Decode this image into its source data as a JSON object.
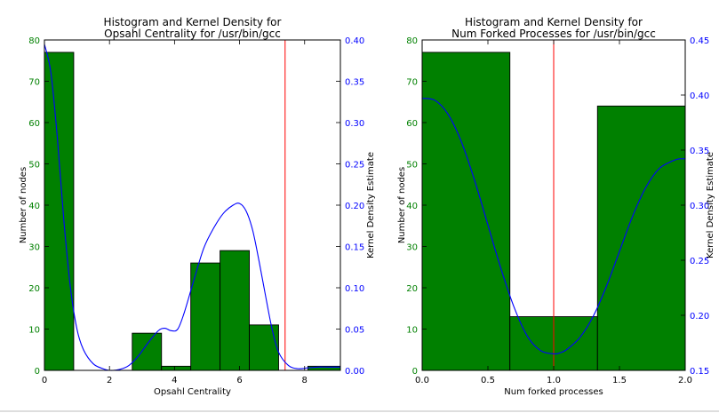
{
  "chart_data": [
    {
      "type": "bar",
      "title_lines": [
        "Histogram and Kernel Density for",
        "Opsahl Centrality for /usr/bin/gcc"
      ],
      "xlabel": "Opsahl Centrality",
      "ylabel": "Number of nodes",
      "y2label": "Kernel Density Estimate",
      "xlim": [
        0,
        9.1
      ],
      "ylim": [
        0,
        80
      ],
      "y2lim": [
        0,
        0.4
      ],
      "xticks": [
        0,
        2,
        4,
        6,
        8
      ],
      "yticks": [
        0,
        10,
        20,
        30,
        40,
        50,
        60,
        70,
        80
      ],
      "y2ticks": [
        0.0,
        0.05,
        0.1,
        0.15,
        0.2,
        0.25,
        0.3,
        0.35,
        0.4
      ],
      "y2tick_decimals": 2,
      "bins": [
        {
          "x0": 0.0,
          "x1": 0.9,
          "count": 77
        },
        {
          "x0": 2.7,
          "x1": 3.6,
          "count": 9
        },
        {
          "x0": 3.6,
          "x1": 4.5,
          "count": 1
        },
        {
          "x0": 4.5,
          "x1": 5.4,
          "count": 26
        },
        {
          "x0": 5.4,
          "x1": 6.3,
          "count": 29
        },
        {
          "x0": 6.3,
          "x1": 7.2,
          "count": 11
        },
        {
          "x0": 8.1,
          "x1": 9.1,
          "count": 1
        }
      ],
      "kde": {
        "x": [
          0.0,
          0.2,
          0.4,
          0.6,
          0.8,
          1.0,
          1.2,
          1.5,
          1.8,
          2.0,
          2.3,
          2.6,
          2.9,
          3.2,
          3.5,
          3.7,
          3.9,
          4.1,
          4.3,
          4.6,
          4.9,
          5.2,
          5.5,
          5.8,
          6.0,
          6.2,
          6.4,
          6.6,
          6.8,
          7.0,
          7.2,
          7.5,
          7.8,
          8.1,
          8.4,
          8.7,
          9.1
        ],
        "y": [
          0.395,
          0.36,
          0.28,
          0.18,
          0.1,
          0.05,
          0.025,
          0.008,
          0.002,
          0.0,
          0.001,
          0.006,
          0.018,
          0.034,
          0.048,
          0.051,
          0.048,
          0.05,
          0.07,
          0.11,
          0.148,
          0.172,
          0.19,
          0.2,
          0.202,
          0.193,
          0.17,
          0.132,
          0.09,
          0.05,
          0.022,
          0.006,
          0.002,
          0.003,
          0.004,
          0.004,
          0.004
        ]
      },
      "vline_x": 7.4,
      "colors": {
        "bar": "#008000",
        "kde": "#0000ff",
        "vline": "#ff0000",
        "left_ticks": "#008000",
        "right_ticks": "#0000ff"
      }
    },
    {
      "type": "bar",
      "title_lines": [
        "Histogram and Kernel Density for",
        "Num Forked Processes for /usr/bin/gcc"
      ],
      "xlabel": "Num forked processes",
      "ylabel": "Number of nodes",
      "y2label": "Kernel Density Estimate",
      "xlim": [
        0,
        2.0
      ],
      "ylim": [
        0,
        80
      ],
      "y2lim": [
        0.15,
        0.45
      ],
      "xticks": [
        0.0,
        0.5,
        1.0,
        1.5,
        2.0
      ],
      "xtick_decimals": 1,
      "yticks": [
        0,
        10,
        20,
        30,
        40,
        50,
        60,
        70,
        80
      ],
      "y2ticks": [
        0.15,
        0.2,
        0.25,
        0.3,
        0.35,
        0.4,
        0.45
      ],
      "y2tick_decimals": 2,
      "bins": [
        {
          "x0": 0.0,
          "x1": 0.667,
          "count": 77
        },
        {
          "x0": 0.667,
          "x1": 1.333,
          "count": 13
        },
        {
          "x0": 1.333,
          "x1": 2.0,
          "count": 64
        }
      ],
      "kde": {
        "x": [
          0.0,
          0.1,
          0.2,
          0.3,
          0.4,
          0.5,
          0.6,
          0.7,
          0.8,
          0.9,
          1.0,
          1.05,
          1.1,
          1.2,
          1.3,
          1.4,
          1.5,
          1.6,
          1.7,
          1.8,
          1.9,
          1.95,
          2.0
        ],
        "y": [
          0.397,
          0.395,
          0.382,
          0.357,
          0.322,
          0.282,
          0.242,
          0.207,
          0.181,
          0.168,
          0.165,
          0.166,
          0.169,
          0.18,
          0.199,
          0.226,
          0.258,
          0.29,
          0.316,
          0.333,
          0.34,
          0.342,
          0.342
        ]
      },
      "vline_x": 1.0,
      "colors": {
        "bar": "#008000",
        "kde": "#0000ff",
        "vline": "#ff0000",
        "left_ticks": "#008000",
        "right_ticks": "#0000ff"
      }
    }
  ]
}
